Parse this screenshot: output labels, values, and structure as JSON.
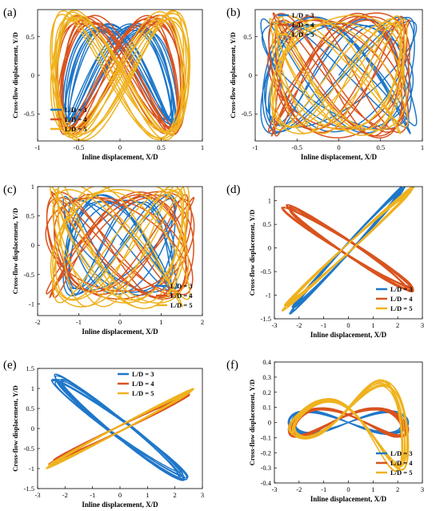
{
  "colors": {
    "L3": "#1f77c9",
    "L4": "#d9531e",
    "L5": "#efb21f",
    "axis": "#000000",
    "bg": "#ffffff"
  },
  "legend_entries": [
    "L/D = 3",
    "L/D = 4",
    "L/D = 5"
  ],
  "panels": [
    {
      "label": "(a)",
      "xlabel": "Inline displacement, X/D",
      "ylabel": "Cross-flow displacement, Y/D",
      "xticks": [
        "-1",
        "-0.5",
        "0",
        "0.5",
        "1"
      ],
      "yticks": [
        "-0.5",
        "0",
        "0.5"
      ],
      "legend_loc": "bottom-left"
    },
    {
      "label": "(b)",
      "xlabel": "Inline displacement, X/D",
      "ylabel": "Cross-flow displacement, Y/D",
      "xticks": [
        "-1",
        "-0.5",
        "0",
        "0.5",
        "1"
      ],
      "yticks": [
        "-0.5",
        "0",
        "0.5"
      ],
      "legend_loc": "top-left"
    },
    {
      "label": "(c)",
      "xlabel": "Inline displacement, X/D",
      "ylabel": "Cross-flow displacement, Y/D",
      "xticks": [
        "-2",
        "-1",
        "0",
        "1",
        "2"
      ],
      "yticks": [
        "-1",
        "-0.5",
        "0",
        "0.5",
        "1"
      ],
      "legend_loc": "bottom-right"
    },
    {
      "label": "(d)",
      "xlabel": "Inline displacement, X/D",
      "ylabel": "Cross-flow displacement, Y/D",
      "xticks": [
        "-3",
        "-2",
        "-1",
        "0",
        "1",
        "2",
        "3"
      ],
      "yticks": [
        "-1.5",
        "-1",
        "-0.5",
        "0",
        "0.5",
        "1"
      ],
      "legend_loc": "bottom-right"
    },
    {
      "label": "(e)",
      "xlabel": "Inline displacement, X/D",
      "ylabel": "Cross-flow displacement, Y/D",
      "xticks": [
        "-3",
        "-2",
        "-1",
        "0",
        "1",
        "2",
        "3"
      ],
      "yticks": [
        "-1.5",
        "-1",
        "-0.5",
        "0",
        "0.5",
        "1",
        "1.5"
      ],
      "legend_loc": "top-center"
    },
    {
      "label": "(f)",
      "xlabel": "Inline displacement, X/D",
      "ylabel": "Cross-flow displacement, Y/D",
      "xticks": [
        "-3",
        "-2",
        "-1",
        "0",
        "1",
        "2",
        "3"
      ],
      "yticks": [
        "-0.4",
        "-0.3",
        "-0.2",
        "-0.1",
        "0",
        "0.1",
        "0.2",
        "0.3",
        "0.4"
      ],
      "legend_loc": "bottom-right"
    }
  ],
  "chart_data": [
    {
      "type": "line",
      "panel": "(a)",
      "xlim": [
        -1,
        1
      ],
      "ylim": [
        -0.85,
        0.85
      ],
      "grid": false,
      "legend": "bottom-left",
      "series": [
        {
          "name": "L/D = 3",
          "color": "#1f77c9",
          "x_amp": 0.66,
          "y_amp": 0.62,
          "pattern": "figure-eight"
        },
        {
          "name": "L/D = 4",
          "color": "#d9531e",
          "x_amp": 0.74,
          "y_amp": 0.72,
          "pattern": "figure-eight"
        },
        {
          "name": "L/D = 5",
          "color": "#efb21f",
          "x_amp": 0.8,
          "y_amp": 0.78,
          "pattern": "figure-eight"
        }
      ]
    },
    {
      "type": "line",
      "panel": "(b)",
      "xlim": [
        -1,
        1
      ],
      "ylim": [
        -0.85,
        0.85
      ],
      "grid": false,
      "legend": "top-left",
      "series": [
        {
          "name": "L/D = 3",
          "color": "#1f77c9",
          "x_amp": 0.88,
          "y_amp": 0.7,
          "pattern": "irregular"
        },
        {
          "name": "L/D = 4",
          "color": "#d9531e",
          "x_amp": 0.8,
          "y_amp": 0.75,
          "pattern": "irregular"
        },
        {
          "name": "L/D = 5",
          "color": "#efb21f",
          "x_amp": 0.78,
          "y_amp": 0.72,
          "pattern": "irregular"
        }
      ]
    },
    {
      "type": "line",
      "panel": "(c)",
      "xlim": [
        -2,
        2
      ],
      "ylim": [
        -1.2,
        1
      ],
      "grid": false,
      "legend": "bottom-right",
      "series": [
        {
          "name": "L/D = 3",
          "color": "#1f77c9",
          "x_amp": 1.3,
          "y_amp": 0.8,
          "pattern": "irregular"
        },
        {
          "name": "L/D = 4",
          "color": "#d9531e",
          "x_amp": 1.7,
          "y_amp": 0.85,
          "pattern": "irregular"
        },
        {
          "name": "L/D = 5",
          "color": "#efb21f",
          "x_amp": 1.6,
          "y_amp": 1.0,
          "pattern": "irregular"
        }
      ]
    },
    {
      "type": "line",
      "panel": "(d)",
      "xlim": [
        -3,
        3
      ],
      "ylim": [
        -1.5,
        1.3
      ],
      "grid": false,
      "legend": "bottom-right",
      "series": [
        {
          "name": "L/D = 3",
          "color": "#1f77c9",
          "x_amp": 2.2,
          "y_amp": 1.25,
          "pattern": "positive-slope"
        },
        {
          "name": "L/D = 4",
          "color": "#d9531e",
          "x_amp": 2.5,
          "y_amp": 0.85,
          "pattern": "negative-slope"
        },
        {
          "name": "L/D = 5",
          "color": "#efb21f",
          "x_amp": 2.5,
          "y_amp": 1.2,
          "pattern": "positive-slope"
        }
      ]
    },
    {
      "type": "line",
      "panel": "(e)",
      "xlim": [
        -3,
        3
      ],
      "ylim": [
        -1.5,
        1.5
      ],
      "grid": false,
      "legend": "top-center",
      "series": [
        {
          "name": "L/D = 3",
          "color": "#1f77c9",
          "x_amp": 2.3,
          "y_amp": 1.2,
          "pattern": "negative-slope"
        },
        {
          "name": "L/D = 4",
          "color": "#d9531e",
          "x_amp": 2.4,
          "y_amp": 0.8,
          "pattern": "positive-slope"
        },
        {
          "name": "L/D = 5",
          "color": "#efb21f",
          "x_amp": 2.5,
          "y_amp": 0.9,
          "pattern": "positive-slope"
        }
      ]
    },
    {
      "type": "line",
      "panel": "(f)",
      "xlim": [
        -3,
        3
      ],
      "ylim": [
        -0.4,
        0.4
      ],
      "grid": false,
      "legend": "bottom-right",
      "series": [
        {
          "name": "L/D = 3",
          "color": "#1f77c9",
          "x_amp": 2.3,
          "y_amp": 0.08,
          "pattern": "flat-band"
        },
        {
          "name": "L/D = 4",
          "color": "#d9531e",
          "x_amp": 2.3,
          "y_amp": 0.1,
          "pattern": "flat-band"
        },
        {
          "name": "L/D = 5",
          "color": "#efb21f",
          "x_amp": 2.3,
          "y_amp": 0.35,
          "pattern": "fan"
        }
      ]
    }
  ]
}
